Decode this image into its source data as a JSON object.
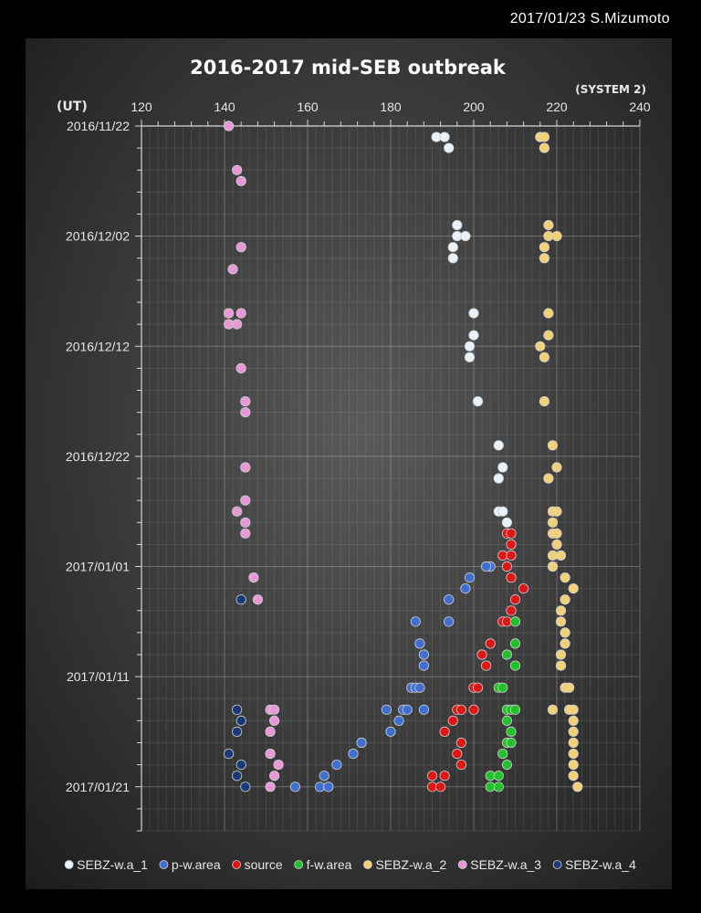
{
  "credit": "2017/01/23 S.Mizumoto",
  "chart_data": {
    "type": "scatter",
    "title": "2016-2017 mid-SEB outbreak",
    "x_axis_unit": "(SYSTEM 2)",
    "y_axis_unit": "(UT)",
    "xlim": [
      120,
      240
    ],
    "x_ticks": [
      "120",
      "140",
      "160",
      "180",
      "200",
      "220",
      "240"
    ],
    "ylim": [
      "2016/11/22",
      "2017/01/25"
    ],
    "y_ticks": [
      "2016/11/22",
      "2016/12/02",
      "2016/12/12",
      "2016/12/22",
      "2017/01/01",
      "2017/01/11",
      "2017/01/21"
    ],
    "grid": true,
    "legend_position": "bottom",
    "series": [
      {
        "name": "SEBZ-w.a_1",
        "color": "#e8f2fa",
        "points": [
          [
            "2016/11/23",
            191
          ],
          [
            "2016/11/23",
            193
          ],
          [
            "2016/11/24",
            194
          ],
          [
            "2016/12/01",
            196
          ],
          [
            "2016/12/02",
            196
          ],
          [
            "2016/12/02",
            198
          ],
          [
            "2016/12/03",
            195
          ],
          [
            "2016/12/04",
            195
          ],
          [
            "2016/12/09",
            200
          ],
          [
            "2016/12/11",
            200
          ],
          [
            "2016/12/12",
            199
          ],
          [
            "2016/12/13",
            199
          ],
          [
            "2016/12/17",
            201
          ],
          [
            "2016/12/21",
            206
          ],
          [
            "2016/12/23",
            207
          ],
          [
            "2016/12/24",
            206
          ],
          [
            "2016/12/27",
            206
          ],
          [
            "2016/12/27",
            207
          ],
          [
            "2016/12/28",
            208
          ]
        ]
      },
      {
        "name": "p-w.area",
        "color": "#3f6fd0",
        "points": [
          [
            "2017/01/01",
            204
          ],
          [
            "2017/01/01",
            203
          ],
          [
            "2017/01/02",
            199
          ],
          [
            "2017/01/03",
            198
          ],
          [
            "2017/01/04",
            194
          ],
          [
            "2017/01/06",
            194
          ],
          [
            "2017/01/06",
            186
          ],
          [
            "2017/01/08",
            187
          ],
          [
            "2017/01/09",
            188
          ],
          [
            "2017/01/10",
            188
          ],
          [
            "2017/01/12",
            185
          ],
          [
            "2017/01/12",
            186
          ],
          [
            "2017/01/12",
            187
          ],
          [
            "2017/01/14",
            179
          ],
          [
            "2017/01/14",
            183
          ],
          [
            "2017/01/14",
            184
          ],
          [
            "2017/01/14",
            188
          ],
          [
            "2017/01/15",
            182
          ],
          [
            "2017/01/16",
            180
          ],
          [
            "2017/01/17",
            173
          ],
          [
            "2017/01/18",
            171
          ],
          [
            "2017/01/19",
            167
          ],
          [
            "2017/01/20",
            164
          ],
          [
            "2017/01/21",
            157
          ],
          [
            "2017/01/21",
            163
          ],
          [
            "2017/01/21",
            165
          ]
        ]
      },
      {
        "name": "source",
        "color": "#e01515",
        "points": [
          [
            "2016/12/29",
            208
          ],
          [
            "2016/12/29",
            209
          ],
          [
            "2016/12/30",
            209
          ],
          [
            "2016/12/31",
            207
          ],
          [
            "2016/12/31",
            209
          ],
          [
            "2017/01/01",
            208
          ],
          [
            "2017/01/02",
            209
          ],
          [
            "2017/01/03",
            212
          ],
          [
            "2017/01/04",
            210
          ],
          [
            "2017/01/05",
            209
          ],
          [
            "2017/01/06",
            207
          ],
          [
            "2017/01/06",
            208
          ],
          [
            "2017/01/08",
            204
          ],
          [
            "2017/01/09",
            202
          ],
          [
            "2017/01/10",
            203
          ],
          [
            "2017/01/12",
            200
          ],
          [
            "2017/01/12",
            201
          ],
          [
            "2017/01/14",
            196
          ],
          [
            "2017/01/14",
            197
          ],
          [
            "2017/01/14",
            200
          ],
          [
            "2017/01/15",
            195
          ],
          [
            "2017/01/16",
            193
          ],
          [
            "2017/01/17",
            197
          ],
          [
            "2017/01/18",
            196
          ],
          [
            "2017/01/19",
            197
          ],
          [
            "2017/01/20",
            190
          ],
          [
            "2017/01/20",
            193
          ],
          [
            "2017/01/21",
            190
          ],
          [
            "2017/01/21",
            192
          ]
        ]
      },
      {
        "name": "f-w.area",
        "color": "#22c02a",
        "points": [
          [
            "2017/01/06",
            210
          ],
          [
            "2017/01/08",
            210
          ],
          [
            "2017/01/09",
            208
          ],
          [
            "2017/01/10",
            210
          ],
          [
            "2017/01/12",
            206
          ],
          [
            "2017/01/12",
            207
          ],
          [
            "2017/01/14",
            208
          ],
          [
            "2017/01/14",
            209
          ],
          [
            "2017/01/14",
            210
          ],
          [
            "2017/01/15",
            208
          ],
          [
            "2017/01/16",
            209
          ],
          [
            "2017/01/17",
            208
          ],
          [
            "2017/01/17",
            209
          ],
          [
            "2017/01/18",
            207
          ],
          [
            "2017/01/19",
            208
          ],
          [
            "2017/01/20",
            204
          ],
          [
            "2017/01/20",
            206
          ],
          [
            "2017/01/21",
            204
          ],
          [
            "2017/01/21",
            206
          ]
        ]
      },
      {
        "name": "SEBZ-w.a_2",
        "color": "#f2d078",
        "points": [
          [
            "2016/11/23",
            216
          ],
          [
            "2016/11/23",
            217
          ],
          [
            "2016/11/24",
            217
          ],
          [
            "2016/12/01",
            218
          ],
          [
            "2016/12/02",
            218
          ],
          [
            "2016/12/02",
            220
          ],
          [
            "2016/12/03",
            217
          ],
          [
            "2016/12/04",
            217
          ],
          [
            "2016/12/09",
            218
          ],
          [
            "2016/12/11",
            218
          ],
          [
            "2016/12/12",
            216
          ],
          [
            "2016/12/13",
            217
          ],
          [
            "2016/12/17",
            217
          ],
          [
            "2016/12/21",
            219
          ],
          [
            "2016/12/23",
            220
          ],
          [
            "2016/12/24",
            218
          ],
          [
            "2016/12/27",
            219
          ],
          [
            "2016/12/27",
            220
          ],
          [
            "2016/12/28",
            219
          ],
          [
            "2016/12/29",
            219
          ],
          [
            "2016/12/29",
            220
          ],
          [
            "2016/12/30",
            220
          ],
          [
            "2016/12/31",
            219
          ],
          [
            "2016/12/31",
            221
          ],
          [
            "2017/01/01",
            219
          ],
          [
            "2017/01/02",
            222
          ],
          [
            "2017/01/03",
            224
          ],
          [
            "2017/01/04",
            222
          ],
          [
            "2017/01/05",
            221
          ],
          [
            "2017/01/06",
            221
          ],
          [
            "2017/01/07",
            222
          ],
          [
            "2017/01/08",
            222
          ],
          [
            "2017/01/09",
            221
          ],
          [
            "2017/01/10",
            221
          ],
          [
            "2017/01/12",
            222
          ],
          [
            "2017/01/12",
            223
          ],
          [
            "2017/01/14",
            219
          ],
          [
            "2017/01/14",
            223
          ],
          [
            "2017/01/14",
            224
          ],
          [
            "2017/01/15",
            224
          ],
          [
            "2017/01/16",
            224
          ],
          [
            "2017/01/17",
            224
          ],
          [
            "2017/01/18",
            224
          ],
          [
            "2017/01/19",
            224
          ],
          [
            "2017/01/20",
            224
          ],
          [
            "2017/01/21",
            225
          ]
        ]
      },
      {
        "name": "SEBZ-w.a_3",
        "color": "#e898d8",
        "points": [
          [
            "2016/11/22",
            141
          ],
          [
            "2016/11/26",
            143
          ],
          [
            "2016/11/27",
            144
          ],
          [
            "2016/12/03",
            144
          ],
          [
            "2016/12/05",
            142
          ],
          [
            "2016/12/09",
            141
          ],
          [
            "2016/12/09",
            144
          ],
          [
            "2016/12/10",
            141
          ],
          [
            "2016/12/10",
            143
          ],
          [
            "2016/12/14",
            144
          ],
          [
            "2016/12/17",
            145
          ],
          [
            "2016/12/18",
            145
          ],
          [
            "2016/12/23",
            145
          ],
          [
            "2016/12/26",
            145
          ],
          [
            "2016/12/27",
            143
          ],
          [
            "2016/12/28",
            145
          ],
          [
            "2016/12/29",
            145
          ],
          [
            "2017/01/02",
            147
          ],
          [
            "2017/01/04",
            148
          ],
          [
            "2017/01/14",
            151
          ],
          [
            "2017/01/14",
            152
          ],
          [
            "2017/01/15",
            152
          ],
          [
            "2017/01/16",
            151
          ],
          [
            "2017/01/18",
            151
          ],
          [
            "2017/01/19",
            153
          ],
          [
            "2017/01/20",
            152
          ],
          [
            "2017/01/21",
            151
          ]
        ]
      },
      {
        "name": "SEBZ-w.a_4",
        "color": "#1b3a78",
        "points": [
          [
            "2017/01/04",
            144
          ],
          [
            "2017/01/14",
            143
          ],
          [
            "2017/01/15",
            144
          ],
          [
            "2017/01/16",
            143
          ],
          [
            "2017/01/18",
            141
          ],
          [
            "2017/01/19",
            144
          ],
          [
            "2017/01/20",
            143
          ],
          [
            "2017/01/21",
            145
          ]
        ]
      }
    ]
  }
}
